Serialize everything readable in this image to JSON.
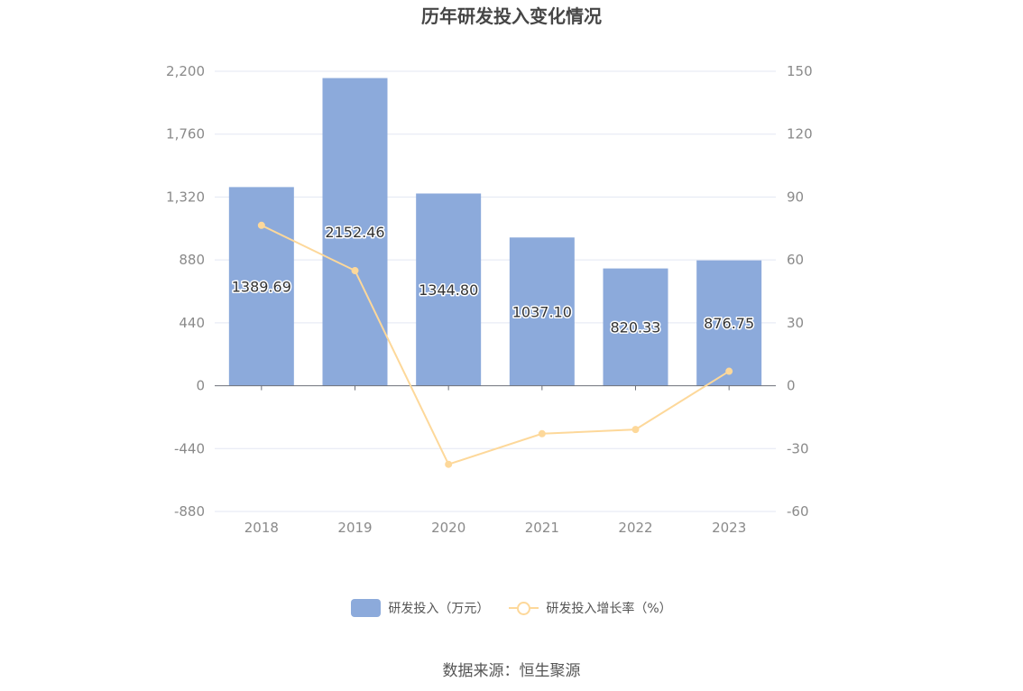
{
  "title": "历年研发投入变化情况",
  "source": "数据来源：恒生聚源",
  "legend": {
    "bar": "研发投入（万元）",
    "line": "研发投入增长率（%）"
  },
  "colors": {
    "bar": "#8caadb",
    "line": "#fdd89a",
    "grid": "#e3e7f3",
    "axis": "#6e7079"
  },
  "chart_data": {
    "type": "bar",
    "categories": [
      "2018",
      "2019",
      "2020",
      "2021",
      "2022",
      "2023"
    ],
    "series": [
      {
        "name": "研发投入（万元）",
        "type": "bar",
        "axis": "left",
        "values": [
          1389.69,
          2152.46,
          1344.8,
          1037.1,
          820.33,
          876.75
        ],
        "labels": [
          "1389.69",
          "2152.46",
          "1344.80",
          "1037.10",
          "820.33",
          "876.75"
        ]
      },
      {
        "name": "研发投入增长率（%）",
        "type": "line",
        "axis": "right",
        "values": [
          76.5,
          54.9,
          -37.5,
          -22.9,
          -20.9,
          6.9
        ]
      }
    ],
    "y_left": {
      "ticks": [
        2200,
        1760,
        1320,
        880,
        440,
        0,
        -440,
        -880
      ],
      "tick_labels": [
        "2,200",
        "1,760",
        "1,320",
        "880",
        "440",
        "0",
        "-440",
        "-880"
      ],
      "ylim": [
        -880,
        2200
      ]
    },
    "y_right": {
      "ticks": [
        150,
        120,
        90,
        60,
        30,
        0,
        -30,
        -60
      ],
      "tick_labels": [
        "150",
        "120",
        "90",
        "60",
        "30",
        "0",
        "-30",
        "-60"
      ],
      "ylim": [
        -60,
        150
      ]
    },
    "grid": true,
    "legend_position": "bottom"
  }
}
